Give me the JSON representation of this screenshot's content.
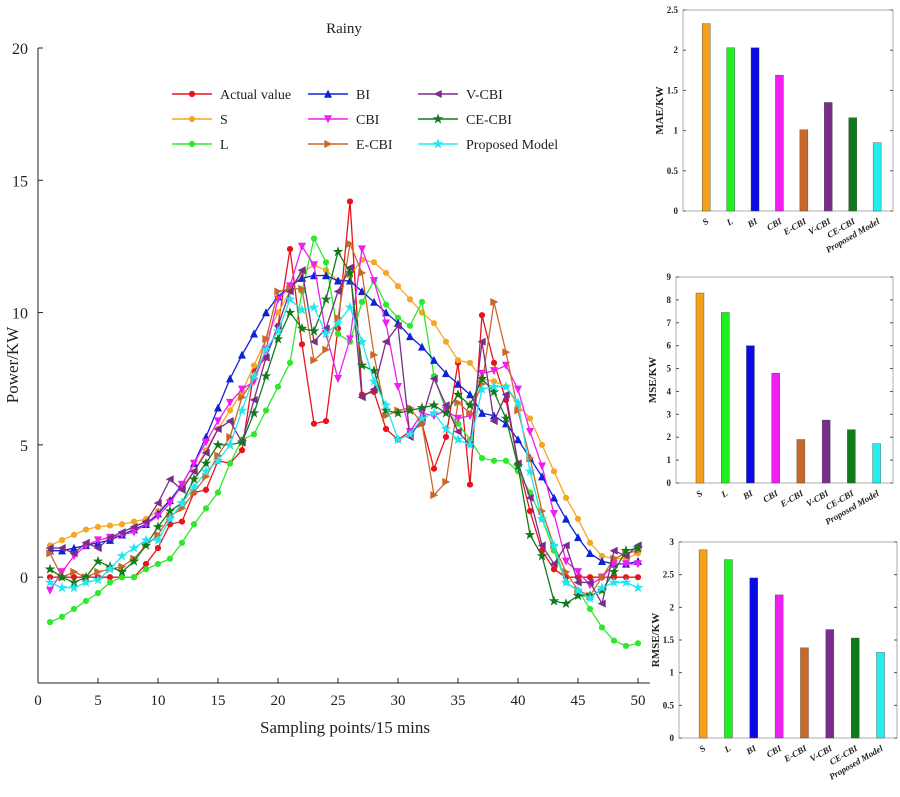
{
  "chart_data": [
    {
      "type": "line",
      "title": "Rainy",
      "xlabel": "Sampling points/15 mins",
      "ylabel": "Power/KW",
      "xlim": [
        0,
        51
      ],
      "ylim": [
        -4,
        20
      ],
      "xticks": [
        0,
        5,
        10,
        15,
        20,
        25,
        30,
        35,
        40,
        45,
        50
      ],
      "yticks": [
        0,
        5,
        10,
        15,
        20
      ],
      "grid": false,
      "legend_position": "top-center",
      "x": [
        1,
        2,
        3,
        4,
        5,
        6,
        7,
        8,
        9,
        10,
        11,
        12,
        13,
        14,
        15,
        16,
        17,
        18,
        19,
        20,
        21,
        22,
        23,
        24,
        25,
        26,
        27,
        28,
        29,
        30,
        31,
        32,
        33,
        34,
        35,
        36,
        37,
        38,
        39,
        40,
        41,
        42,
        43,
        44,
        45,
        46,
        47,
        48,
        49,
        50
      ],
      "series": [
        {
          "name": "Actual value",
          "color": "#e8141b",
          "marker": "circle",
          "values": [
            0,
            0,
            0,
            0,
            0,
            0,
            0,
            0,
            0.5,
            1.1,
            2.0,
            2.1,
            3.2,
            3.3,
            4.4,
            4.3,
            4.8,
            7.8,
            8.3,
            9.5,
            12.4,
            8.8,
            5.8,
            5.9,
            9.4,
            14.2,
            6.9,
            7.0,
            5.6,
            5.2,
            5.5,
            5.8,
            4.1,
            5.3,
            8.1,
            3.5,
            9.9,
            8.1,
            6.7,
            4.3,
            2.5,
            1.0,
            0.3,
            0,
            0,
            0,
            0,
            0,
            0,
            0
          ]
        },
        {
          "name": "S",
          "color": "#f5a623",
          "marker": "circle",
          "values": [
            1.2,
            1.4,
            1.6,
            1.8,
            1.9,
            1.95,
            2.0,
            2.1,
            2.2,
            2.5,
            2.9,
            3.4,
            4.0,
            4.8,
            5.6,
            6.3,
            7.0,
            8.0,
            9.0,
            10.0,
            10.8,
            11.5,
            11.8,
            11.6,
            11.2,
            11.4,
            12.0,
            11.9,
            11.5,
            11.0,
            10.5,
            10.0,
            9.6,
            8.9,
            8.2,
            8.1,
            7.5,
            7.4,
            7.2,
            6.5,
            6.0,
            5.0,
            4.0,
            3.0,
            2.2,
            1.3,
            0.8,
            0.7,
            0.7,
            0.9
          ]
        },
        {
          "name": "L",
          "color": "#2ee82e",
          "marker": "circle",
          "values": [
            -1.7,
            -1.5,
            -1.2,
            -0.9,
            -0.6,
            -0.2,
            0,
            0,
            0.3,
            0.5,
            0.7,
            1.3,
            2.0,
            2.6,
            3.2,
            4.3,
            5.2,
            5.4,
            6.3,
            7.2,
            8.1,
            10.8,
            12.8,
            11.9,
            9.2,
            8.9,
            10.4,
            11.2,
            10.3,
            9.8,
            9.5,
            10.4,
            7.6,
            6.3,
            5.8,
            5.2,
            4.5,
            4.4,
            4.4,
            4.0,
            3.2,
            2.2,
            1.0,
            -0.2,
            -0.5,
            -1.2,
            -1.9,
            -2.4,
            -2.6,
            -2.5
          ]
        },
        {
          "name": "BI",
          "color": "#1022d8",
          "marker": "triangle-up",
          "values": [
            1.0,
            1.0,
            1.1,
            1.2,
            1.3,
            1.4,
            1.6,
            1.8,
            2.0,
            2.4,
            2.9,
            3.5,
            4.3,
            5.3,
            6.4,
            7.5,
            8.4,
            9.2,
            10.0,
            10.6,
            11.0,
            11.3,
            11.4,
            11.4,
            11.2,
            11.2,
            10.8,
            10.4,
            10.0,
            9.6,
            9.1,
            8.7,
            8.2,
            7.7,
            7.3,
            6.9,
            6.2,
            6.1,
            5.8,
            5.2,
            4.5,
            3.8,
            3.0,
            2.2,
            1.5,
            0.9,
            0.6,
            0.5,
            0.5,
            0.6
          ]
        },
        {
          "name": "CBI",
          "color": "#f01ef0",
          "marker": "triangle-down",
          "values": [
            -0.5,
            0.2,
            0.8,
            1.2,
            1.4,
            1.5,
            1.6,
            1.7,
            2.0,
            2.3,
            2.8,
            3.5,
            4.3,
            5.1,
            5.9,
            6.6,
            7.1,
            7.4,
            8.6,
            10.5,
            11.0,
            12.5,
            11.8,
            9.2,
            7.5,
            9.0,
            12.4,
            11.2,
            9.6,
            7.2,
            5.5,
            6.2,
            6.1,
            6.3,
            6.0,
            6.1,
            7.7,
            7.8,
            8.0,
            7.1,
            5.5,
            4.2,
            2.4,
            0.6,
            0.2,
            -0.3,
            0,
            0.5,
            0.5,
            0.5
          ]
        },
        {
          "name": "E-CBI",
          "color": "#c8692a",
          "marker": "triangle-right",
          "values": [
            0.9,
            0,
            0.2,
            0,
            0.2,
            0.3,
            0.4,
            0.7,
            1.2,
            1.6,
            2.3,
            2.6,
            3.2,
            3.8,
            4.6,
            5.3,
            6.8,
            7.5,
            9.0,
            10.8,
            10.9,
            10.9,
            8.2,
            8.6,
            9.8,
            12.6,
            11.5,
            8.4,
            6.1,
            6.3,
            6.4,
            5.8,
            3.1,
            3.6,
            6.6,
            6.2,
            7.3,
            10.4,
            8.5,
            6.3,
            4.5,
            2.5,
            1.2,
            0.2,
            -0.5,
            -0.7,
            0,
            0.7,
            0.9,
            1.0
          ]
        },
        {
          "name": "V-CBI",
          "color": "#7b2d8b",
          "marker": "triangle-left",
          "values": [
            1.1,
            1.1,
            0.9,
            1.3,
            1.1,
            1.5,
            1.7,
            1.9,
            2.1,
            2.8,
            3.7,
            3.3,
            4.0,
            4.7,
            5.6,
            5.9,
            5.1,
            6.7,
            8.3,
            9.5,
            10.8,
            11.6,
            8.9,
            9.4,
            10.8,
            11.7,
            6.8,
            7.1,
            8.9,
            9.5,
            5.3,
            6.0,
            7.5,
            6.5,
            5.5,
            5.0,
            8.9,
            5.9,
            6.9,
            4.3,
            3.0,
            1.2,
            0.5,
            1.2,
            -0.2,
            -0.2,
            -1.0,
            1.0,
            0.8,
            1.2
          ]
        },
        {
          "name": "CE-CBI",
          "color": "#137a1c",
          "marker": "star",
          "values": [
            0.3,
            0,
            -0.2,
            0,
            0.6,
            0.4,
            0.2,
            0.6,
            1.2,
            1.9,
            2.5,
            2.8,
            3.7,
            4.3,
            5.0,
            5.0,
            5.1,
            6.2,
            7.6,
            9.0,
            10.0,
            9.4,
            9.3,
            10.5,
            12.3,
            11.5,
            8.0,
            7.8,
            6.3,
            6.2,
            6.3,
            6.4,
            6.5,
            6.2,
            6.9,
            6.5,
            7.5,
            7.0,
            6.0,
            4.2,
            1.6,
            0.8,
            -0.9,
            -1.0,
            -0.7,
            -0.7,
            -0.5,
            0.2,
            1.0,
            1.1
          ]
        },
        {
          "name": "Proposed Model",
          "color": "#22e6f0",
          "marker": "star",
          "values": [
            -0.2,
            -0.4,
            -0.4,
            -0.2,
            -0.1,
            0.3,
            0.8,
            1.1,
            1.4,
            1.4,
            2.2,
            2.8,
            3.4,
            4.0,
            4.4,
            5.0,
            6.3,
            7.6,
            8.6,
            9.3,
            10.5,
            10.1,
            10.2,
            9.2,
            9.6,
            10.2,
            8.9,
            7.4,
            6.5,
            5.2,
            5.4,
            6.0,
            6.2,
            5.6,
            5.2,
            5.0,
            7.1,
            7.2,
            7.2,
            6.6,
            4.0,
            2.2,
            1.2,
            -0.2,
            -0.5,
            -0.8,
            -0.4,
            -0.2,
            -0.2,
            -0.4
          ]
        }
      ]
    },
    {
      "type": "bar",
      "ylabel": "MAE/KW",
      "ylim": [
        0,
        2.5
      ],
      "yticks": [
        "0",
        "0.5",
        "1",
        "1.5",
        "2",
        "2.5"
      ],
      "categories": [
        "S",
        "L",
        "BI",
        "CBI",
        "E-CBI",
        "V-CBI",
        "CE-CBI",
        "Proposed Model"
      ],
      "colors": [
        "#f5a01a",
        "#1ef01e",
        "#0a0ae6",
        "#f01ef0",
        "#c8692a",
        "#7b2d8b",
        "#0e7a1a",
        "#22f0f0"
      ],
      "values": [
        2.33,
        2.03,
        2.03,
        1.69,
        1.01,
        1.35,
        1.16,
        0.85
      ]
    },
    {
      "type": "bar",
      "ylabel": "MSE/KW",
      "ylim": [
        0,
        9
      ],
      "yticks": [
        "0",
        "1",
        "2",
        "3",
        "4",
        "5",
        "6",
        "7",
        "8",
        "9"
      ],
      "categories": [
        "S",
        "L",
        "BI",
        "CBI",
        "E-CBI",
        "V-CBI",
        "CE-CBI",
        "Proposed Model"
      ],
      "colors": [
        "#f5a01a",
        "#1ef01e",
        "#0a0ae6",
        "#f01ef0",
        "#c8692a",
        "#7b2d8b",
        "#0e7a1a",
        "#22f0f0"
      ],
      "values": [
        8.3,
        7.45,
        6.0,
        4.8,
        1.9,
        2.75,
        2.33,
        1.72
      ]
    },
    {
      "type": "bar",
      "ylabel": "RMSE/KW",
      "ylim": [
        0,
        3
      ],
      "yticks": [
        "0",
        "0.5",
        "1",
        "1.5",
        "2",
        "2.5",
        "3"
      ],
      "categories": [
        "S",
        "L",
        "BI",
        "CBI",
        "E-CBI",
        "V-CBI",
        "CE-CBI",
        "Proposed Model"
      ],
      "colors": [
        "#f5a01a",
        "#1ef01e",
        "#0a0ae6",
        "#f01ef0",
        "#c8692a",
        "#7b2d8b",
        "#0e7a1a",
        "#22f0f0"
      ],
      "values": [
        2.88,
        2.73,
        2.45,
        2.19,
        1.38,
        1.66,
        1.53,
        1.31
      ]
    }
  ]
}
